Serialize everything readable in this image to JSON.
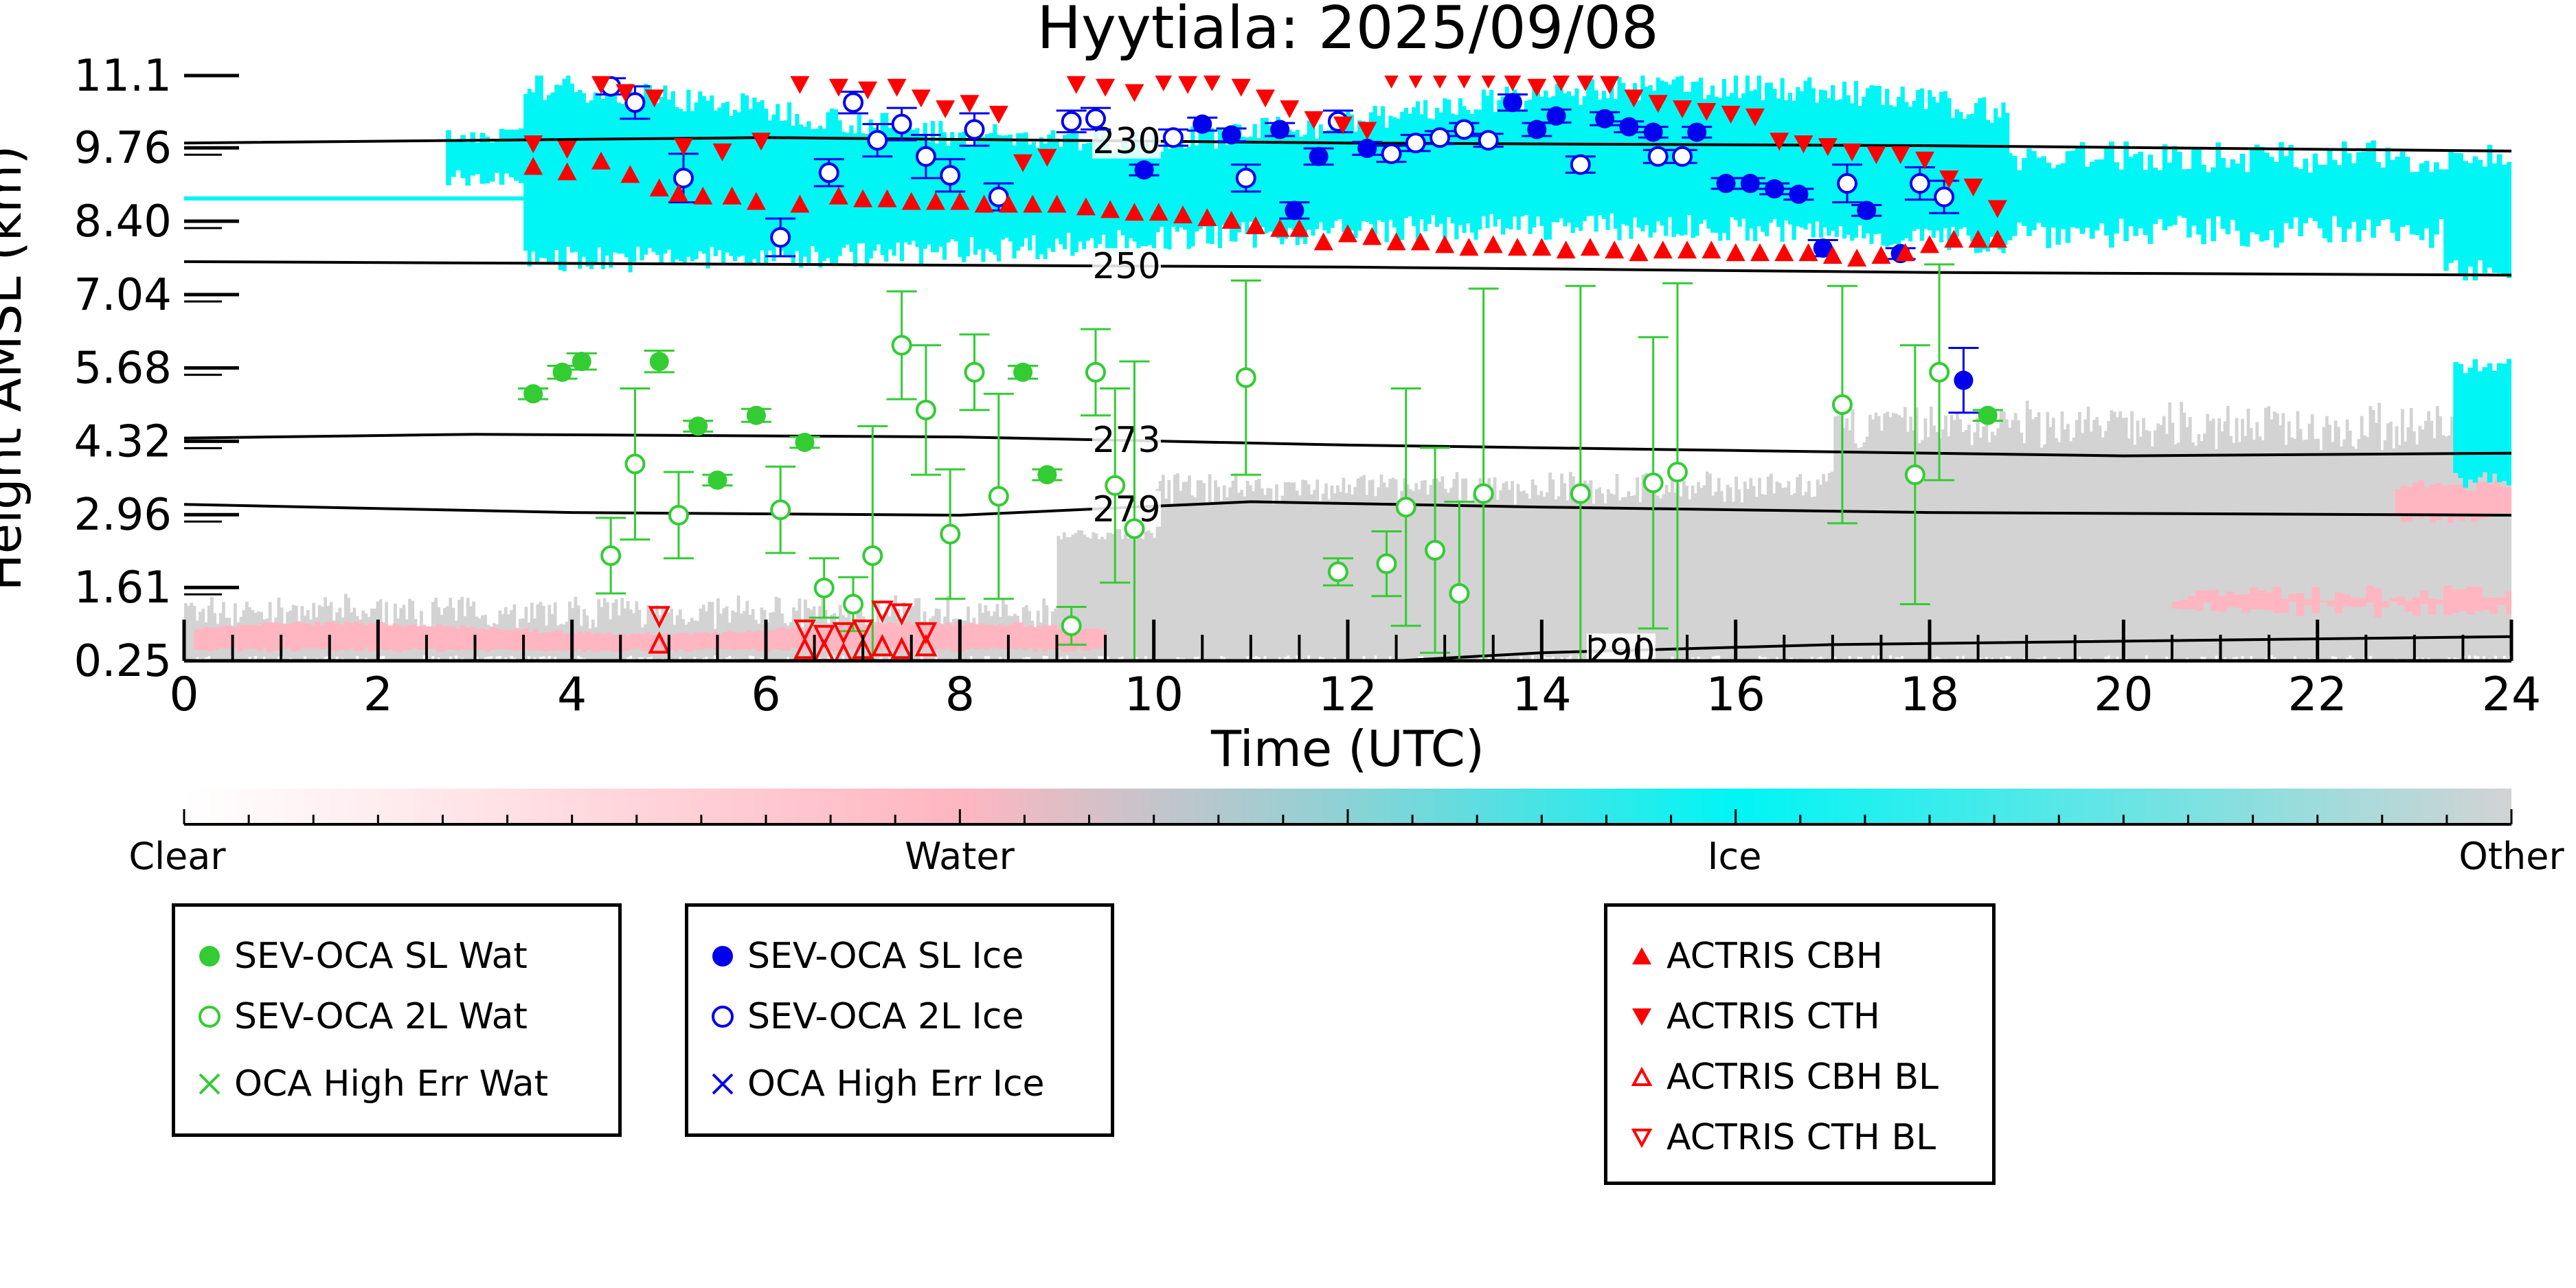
{
  "chart_data": {
    "type": "scatter",
    "title": "Hyytiala: 2025/09/08",
    "xlabel": "Time (UTC)",
    "ylabel": "Height AMSL (km)",
    "xlim": [
      0,
      24
    ],
    "ylim": [
      0.25,
      11.1
    ],
    "x_ticks": [
      0,
      2,
      4,
      6,
      8,
      10,
      12,
      14,
      16,
      18,
      20,
      22,
      24
    ],
    "y_ticks": [
      "0.25",
      "1.61",
      "2.96",
      "4.32",
      "5.68",
      "7.04",
      "8.40",
      "9.76",
      "11.1"
    ],
    "colors": {
      "clear": "#ffffff",
      "water": "#ffb6c1",
      "ice": "#00f5f5",
      "other": "#d3d3d3",
      "sev_wat": "#33cc33",
      "sev_ice": "#0000ee",
      "actris": "#ff0000"
    },
    "colorbar": {
      "labels": [
        "Clear",
        "Water",
        "Ice",
        "Other"
      ]
    },
    "isotherms": [
      {
        "label": "230",
        "label_x": 9.4,
        "points": [
          [
            0,
            9.85
          ],
          [
            6,
            9.95
          ],
          [
            12,
            9.85
          ],
          [
            18,
            9.8
          ],
          [
            24,
            9.7
          ]
        ]
      },
      {
        "label": "250",
        "label_x": 9.4,
        "points": [
          [
            0,
            7.65
          ],
          [
            6,
            7.6
          ],
          [
            12,
            7.55
          ],
          [
            18,
            7.45
          ],
          [
            24,
            7.4
          ]
        ]
      },
      {
        "label": "273",
        "label_x": 9.4,
        "points": [
          [
            0,
            4.38
          ],
          [
            3,
            4.45
          ],
          [
            8,
            4.4
          ],
          [
            12,
            4.25
          ],
          [
            16,
            4.15
          ],
          [
            20,
            4.05
          ],
          [
            24,
            4.1
          ]
        ]
      },
      {
        "label": "279",
        "label_x": 9.4,
        "points": [
          [
            0,
            3.15
          ],
          [
            4,
            3.0
          ],
          [
            8,
            2.95
          ],
          [
            11,
            3.2
          ],
          [
            14,
            3.1
          ],
          [
            18,
            3.0
          ],
          [
            24,
            2.95
          ]
        ]
      },
      {
        "label": "290",
        "label_x": 14.5,
        "points": [
          [
            12.5,
            0.25
          ],
          [
            14,
            0.4
          ],
          [
            17,
            0.55
          ],
          [
            24,
            0.7
          ]
        ]
      }
    ],
    "series": [
      {
        "name": "SEV-OCA SL Wat",
        "marker": "filled-circle",
        "color": "#33cc33",
        "points": [
          [
            3.6,
            5.2,
            0.1
          ],
          [
            3.9,
            5.6,
            0.12
          ],
          [
            4.1,
            5.8,
            0.15
          ],
          [
            4.9,
            5.8,
            0.2
          ],
          [
            5.3,
            4.6,
            0.1
          ],
          [
            5.5,
            3.6,
            0.1
          ],
          [
            5.9,
            4.8,
            0.12
          ],
          [
            6.4,
            4.3,
            0.1
          ],
          [
            8.65,
            5.6,
            0.12
          ],
          [
            8.9,
            3.7,
            0.1
          ],
          [
            18.6,
            4.8,
            0.1
          ]
        ]
      },
      {
        "name": "SEV-OCA 2L Wat",
        "marker": "open-circle",
        "color": "#33cc33",
        "points": [
          [
            4.4,
            2.2,
            0.7
          ],
          [
            4.65,
            3.9,
            1.4
          ],
          [
            5.1,
            2.95,
            0.8
          ],
          [
            6.15,
            3.05,
            0.8
          ],
          [
            6.6,
            1.6,
            0.55
          ],
          [
            6.9,
            1.3,
            0.5
          ],
          [
            7.1,
            2.2,
            2.4
          ],
          [
            7.4,
            6.1,
            1.0
          ],
          [
            7.65,
            4.9,
            1.2
          ],
          [
            7.9,
            2.6,
            1.2
          ],
          [
            8.15,
            5.6,
            0.7
          ],
          [
            8.4,
            3.3,
            1.9
          ],
          [
            9.15,
            0.9,
            0.35
          ],
          [
            9.4,
            5.6,
            0.8
          ],
          [
            9.6,
            3.5,
            1.8
          ],
          [
            9.8,
            2.7,
            3.1
          ],
          [
            10.95,
            5.5,
            1.8
          ],
          [
            11.9,
            1.9,
            0.25
          ],
          [
            12.4,
            2.05,
            0.6
          ],
          [
            12.6,
            3.1,
            2.2
          ],
          [
            12.9,
            2.3,
            1.9
          ],
          [
            13.15,
            1.5,
            1.7
          ],
          [
            13.4,
            3.35,
            3.8
          ],
          [
            14.4,
            3.35,
            3.85
          ],
          [
            15.15,
            3.55,
            2.7
          ],
          [
            15.4,
            3.75,
            3.5
          ],
          [
            17.1,
            5.0,
            2.2
          ],
          [
            17.85,
            3.7,
            2.4
          ],
          [
            18.1,
            5.6,
            2.0
          ]
        ]
      },
      {
        "name": "OCA High Err Wat",
        "marker": "x",
        "color": "#33cc33",
        "points": []
      },
      {
        "name": "SEV-OCA SL Ice",
        "marker": "filled-circle",
        "color": "#0000ee",
        "points": [
          [
            9.9,
            9.35,
            0.1
          ],
          [
            10.5,
            10.2,
            0.12
          ],
          [
            10.8,
            10.0,
            0.12
          ],
          [
            11.3,
            10.1,
            0.12
          ],
          [
            11.45,
            8.6,
            0.15
          ],
          [
            11.7,
            9.6,
            0.15
          ],
          [
            12.2,
            9.75,
            0.12
          ],
          [
            13.7,
            10.6,
            0.15
          ],
          [
            13.95,
            10.1,
            0.12
          ],
          [
            14.15,
            10.35,
            0.12
          ],
          [
            14.65,
            10.3,
            0.12
          ],
          [
            14.9,
            10.15,
            0.1
          ],
          [
            15.15,
            10.05,
            0.1
          ],
          [
            15.6,
            10.05,
            0.1
          ],
          [
            15.9,
            9.1,
            0.1
          ],
          [
            16.15,
            9.1,
            0.1
          ],
          [
            16.4,
            9.0,
            0.1
          ],
          [
            16.65,
            8.9,
            0.1
          ],
          [
            16.9,
            7.9,
            0.15
          ],
          [
            17.35,
            8.6,
            0.1
          ],
          [
            17.7,
            7.8,
            0.1
          ],
          [
            18.35,
            5.45,
            0.6
          ]
        ]
      },
      {
        "name": "SEV-OCA 2L Ice",
        "marker": "open-circle",
        "color": "#0000ee",
        "points": [
          [
            4.4,
            10.9,
            0.15
          ],
          [
            4.65,
            10.6,
            0.3
          ],
          [
            5.15,
            9.2,
            0.45
          ],
          [
            6.15,
            8.1,
            0.35
          ],
          [
            6.65,
            9.3,
            0.25
          ],
          [
            6.9,
            10.6,
            0.2
          ],
          [
            7.15,
            9.9,
            0.3
          ],
          [
            7.4,
            10.2,
            0.3
          ],
          [
            7.65,
            9.6,
            0.4
          ],
          [
            7.9,
            9.25,
            0.3
          ],
          [
            8.15,
            10.1,
            0.3
          ],
          [
            8.4,
            8.85,
            0.25
          ],
          [
            9.15,
            10.25,
            0.2
          ],
          [
            9.4,
            10.3,
            0.2
          ],
          [
            10.2,
            9.95,
            0.15
          ],
          [
            10.95,
            9.2,
            0.25
          ],
          [
            11.9,
            10.25,
            0.2
          ],
          [
            12.45,
            9.65,
            0.15
          ],
          [
            12.7,
            9.85,
            0.15
          ],
          [
            12.95,
            9.95,
            0.12
          ],
          [
            13.2,
            10.1,
            0.12
          ],
          [
            13.45,
            9.9,
            0.12
          ],
          [
            14.4,
            9.45,
            0.15
          ],
          [
            15.2,
            9.6,
            0.12
          ],
          [
            15.45,
            9.6,
            0.12
          ],
          [
            17.15,
            9.1,
            0.35
          ],
          [
            17.9,
            9.1,
            0.3
          ],
          [
            18.15,
            8.85,
            0.3
          ]
        ]
      },
      {
        "name": "OCA High Err Ice",
        "marker": "x",
        "color": "#0000ee",
        "points": []
      },
      {
        "name": "ACTRIS CBH",
        "marker": "triangle-up-filled",
        "color": "#ff0000",
        "points": [
          [
            3.6,
            9.4
          ],
          [
            3.95,
            9.3
          ],
          [
            4.3,
            9.5
          ],
          [
            4.6,
            9.25
          ],
          [
            4.9,
            9.0
          ],
          [
            5.1,
            8.9
          ],
          [
            5.35,
            8.85
          ],
          [
            5.65,
            8.85
          ],
          [
            5.9,
            8.75
          ],
          [
            6.35,
            8.7
          ],
          [
            6.75,
            8.85
          ],
          [
            7.0,
            8.8
          ],
          [
            7.25,
            8.8
          ],
          [
            7.5,
            8.75
          ],
          [
            7.75,
            8.75
          ],
          [
            8.0,
            8.75
          ],
          [
            8.25,
            8.7
          ],
          [
            8.5,
            8.7
          ],
          [
            8.75,
            8.7
          ],
          [
            9.0,
            8.7
          ],
          [
            9.3,
            8.65
          ],
          [
            9.55,
            8.6
          ],
          [
            9.8,
            8.55
          ],
          [
            10.05,
            8.55
          ],
          [
            10.3,
            8.5
          ],
          [
            10.55,
            8.45
          ],
          [
            10.8,
            8.4
          ],
          [
            11.05,
            8.3
          ],
          [
            11.3,
            8.25
          ],
          [
            11.5,
            8.25
          ],
          [
            11.75,
            8.0
          ],
          [
            12.0,
            8.15
          ],
          [
            12.25,
            8.1
          ],
          [
            12.5,
            8.0
          ],
          [
            12.75,
            8.0
          ],
          [
            13.0,
            7.95
          ],
          [
            13.25,
            7.9
          ],
          [
            13.5,
            7.95
          ],
          [
            13.75,
            7.9
          ],
          [
            14.0,
            7.9
          ],
          [
            14.25,
            7.85
          ],
          [
            14.5,
            7.9
          ],
          [
            14.75,
            7.85
          ],
          [
            15.0,
            7.8
          ],
          [
            15.25,
            7.85
          ],
          [
            15.5,
            7.85
          ],
          [
            15.75,
            7.85
          ],
          [
            16.0,
            7.8
          ],
          [
            16.25,
            7.8
          ],
          [
            16.5,
            7.8
          ],
          [
            16.75,
            7.8
          ],
          [
            17.0,
            7.75
          ],
          [
            17.25,
            7.7
          ],
          [
            17.5,
            7.75
          ],
          [
            17.75,
            7.8
          ],
          [
            18.0,
            7.95
          ],
          [
            18.25,
            8.05
          ],
          [
            18.5,
            8.05
          ],
          [
            18.7,
            8.05
          ]
        ]
      },
      {
        "name": "ACTRIS CTH",
        "marker": "triangle-down-filled",
        "color": "#ff0000",
        "points": [
          [
            3.6,
            9.85
          ],
          [
            3.95,
            9.75
          ],
          [
            4.3,
            10.95
          ],
          [
            4.55,
            10.8
          ],
          [
            4.85,
            10.7
          ],
          [
            5.15,
            9.8
          ],
          [
            5.55,
            9.7
          ],
          [
            5.95,
            9.9
          ],
          [
            6.35,
            10.95
          ],
          [
            6.75,
            10.9
          ],
          [
            7.05,
            10.85
          ],
          [
            7.35,
            10.9
          ],
          [
            7.6,
            10.7
          ],
          [
            7.85,
            10.5
          ],
          [
            8.1,
            10.6
          ],
          [
            8.4,
            10.4
          ],
          [
            8.65,
            9.5
          ],
          [
            8.9,
            9.6
          ],
          [
            9.2,
            10.95
          ],
          [
            9.5,
            10.9
          ],
          [
            9.8,
            10.8
          ],
          [
            10.1,
            11.0
          ],
          [
            10.35,
            10.95
          ],
          [
            10.6,
            11.0
          ],
          [
            10.9,
            10.9
          ],
          [
            11.15,
            10.7
          ],
          [
            11.4,
            10.5
          ],
          [
            11.65,
            10.3
          ],
          [
            11.95,
            10.2
          ],
          [
            12.2,
            10.1
          ],
          [
            12.45,
            11.05
          ],
          [
            12.7,
            11.05
          ],
          [
            12.95,
            11.05
          ],
          [
            13.2,
            11.05
          ],
          [
            13.45,
            11.05
          ],
          [
            13.7,
            11.0
          ],
          [
            13.95,
            10.9
          ],
          [
            14.2,
            11.0
          ],
          [
            14.45,
            11.0
          ],
          [
            14.7,
            10.95
          ],
          [
            14.95,
            10.7
          ],
          [
            15.2,
            10.6
          ],
          [
            15.45,
            10.5
          ],
          [
            15.7,
            10.45
          ],
          [
            15.95,
            10.4
          ],
          [
            16.2,
            10.35
          ],
          [
            16.45,
            9.9
          ],
          [
            16.7,
            9.85
          ],
          [
            16.95,
            9.8
          ],
          [
            17.2,
            9.7
          ],
          [
            17.45,
            9.65
          ],
          [
            17.7,
            9.65
          ],
          [
            17.95,
            9.55
          ],
          [
            18.2,
            9.2
          ],
          [
            18.45,
            9.05
          ],
          [
            18.7,
            8.65
          ]
        ]
      },
      {
        "name": "ACTRIS CBH BL",
        "marker": "triangle-up-open",
        "color": "#ff0000",
        "points": [
          [
            4.9,
            0.55
          ],
          [
            6.4,
            0.45
          ],
          [
            6.6,
            0.4
          ],
          [
            6.8,
            0.35
          ],
          [
            7.0,
            0.45
          ],
          [
            7.2,
            0.5
          ],
          [
            7.4,
            0.45
          ],
          [
            7.65,
            0.5
          ]
        ]
      },
      {
        "name": "ACTRIS CTH BL",
        "marker": "triangle-down-open",
        "color": "#ff0000",
        "points": [
          [
            4.9,
            1.1
          ],
          [
            6.4,
            0.85
          ],
          [
            6.6,
            0.75
          ],
          [
            6.8,
            0.8
          ],
          [
            7.0,
            0.85
          ],
          [
            7.2,
            1.2
          ],
          [
            7.4,
            1.15
          ],
          [
            7.65,
            0.8
          ]
        ]
      }
    ],
    "legends": [
      {
        "entries": [
          "SEV-OCA SL Wat",
          "SEV-OCA 2L Wat",
          "OCA High Err Wat"
        ]
      },
      {
        "entries": [
          "SEV-OCA SL Ice",
          "SEV-OCA 2L Ice",
          "OCA High Err Ice"
        ]
      },
      {
        "entries": [
          "ACTRIS CBH",
          "ACTRIS CTH",
          "ACTRIS CBH BL",
          "ACTRIS CTH BL"
        ]
      }
    ]
  }
}
